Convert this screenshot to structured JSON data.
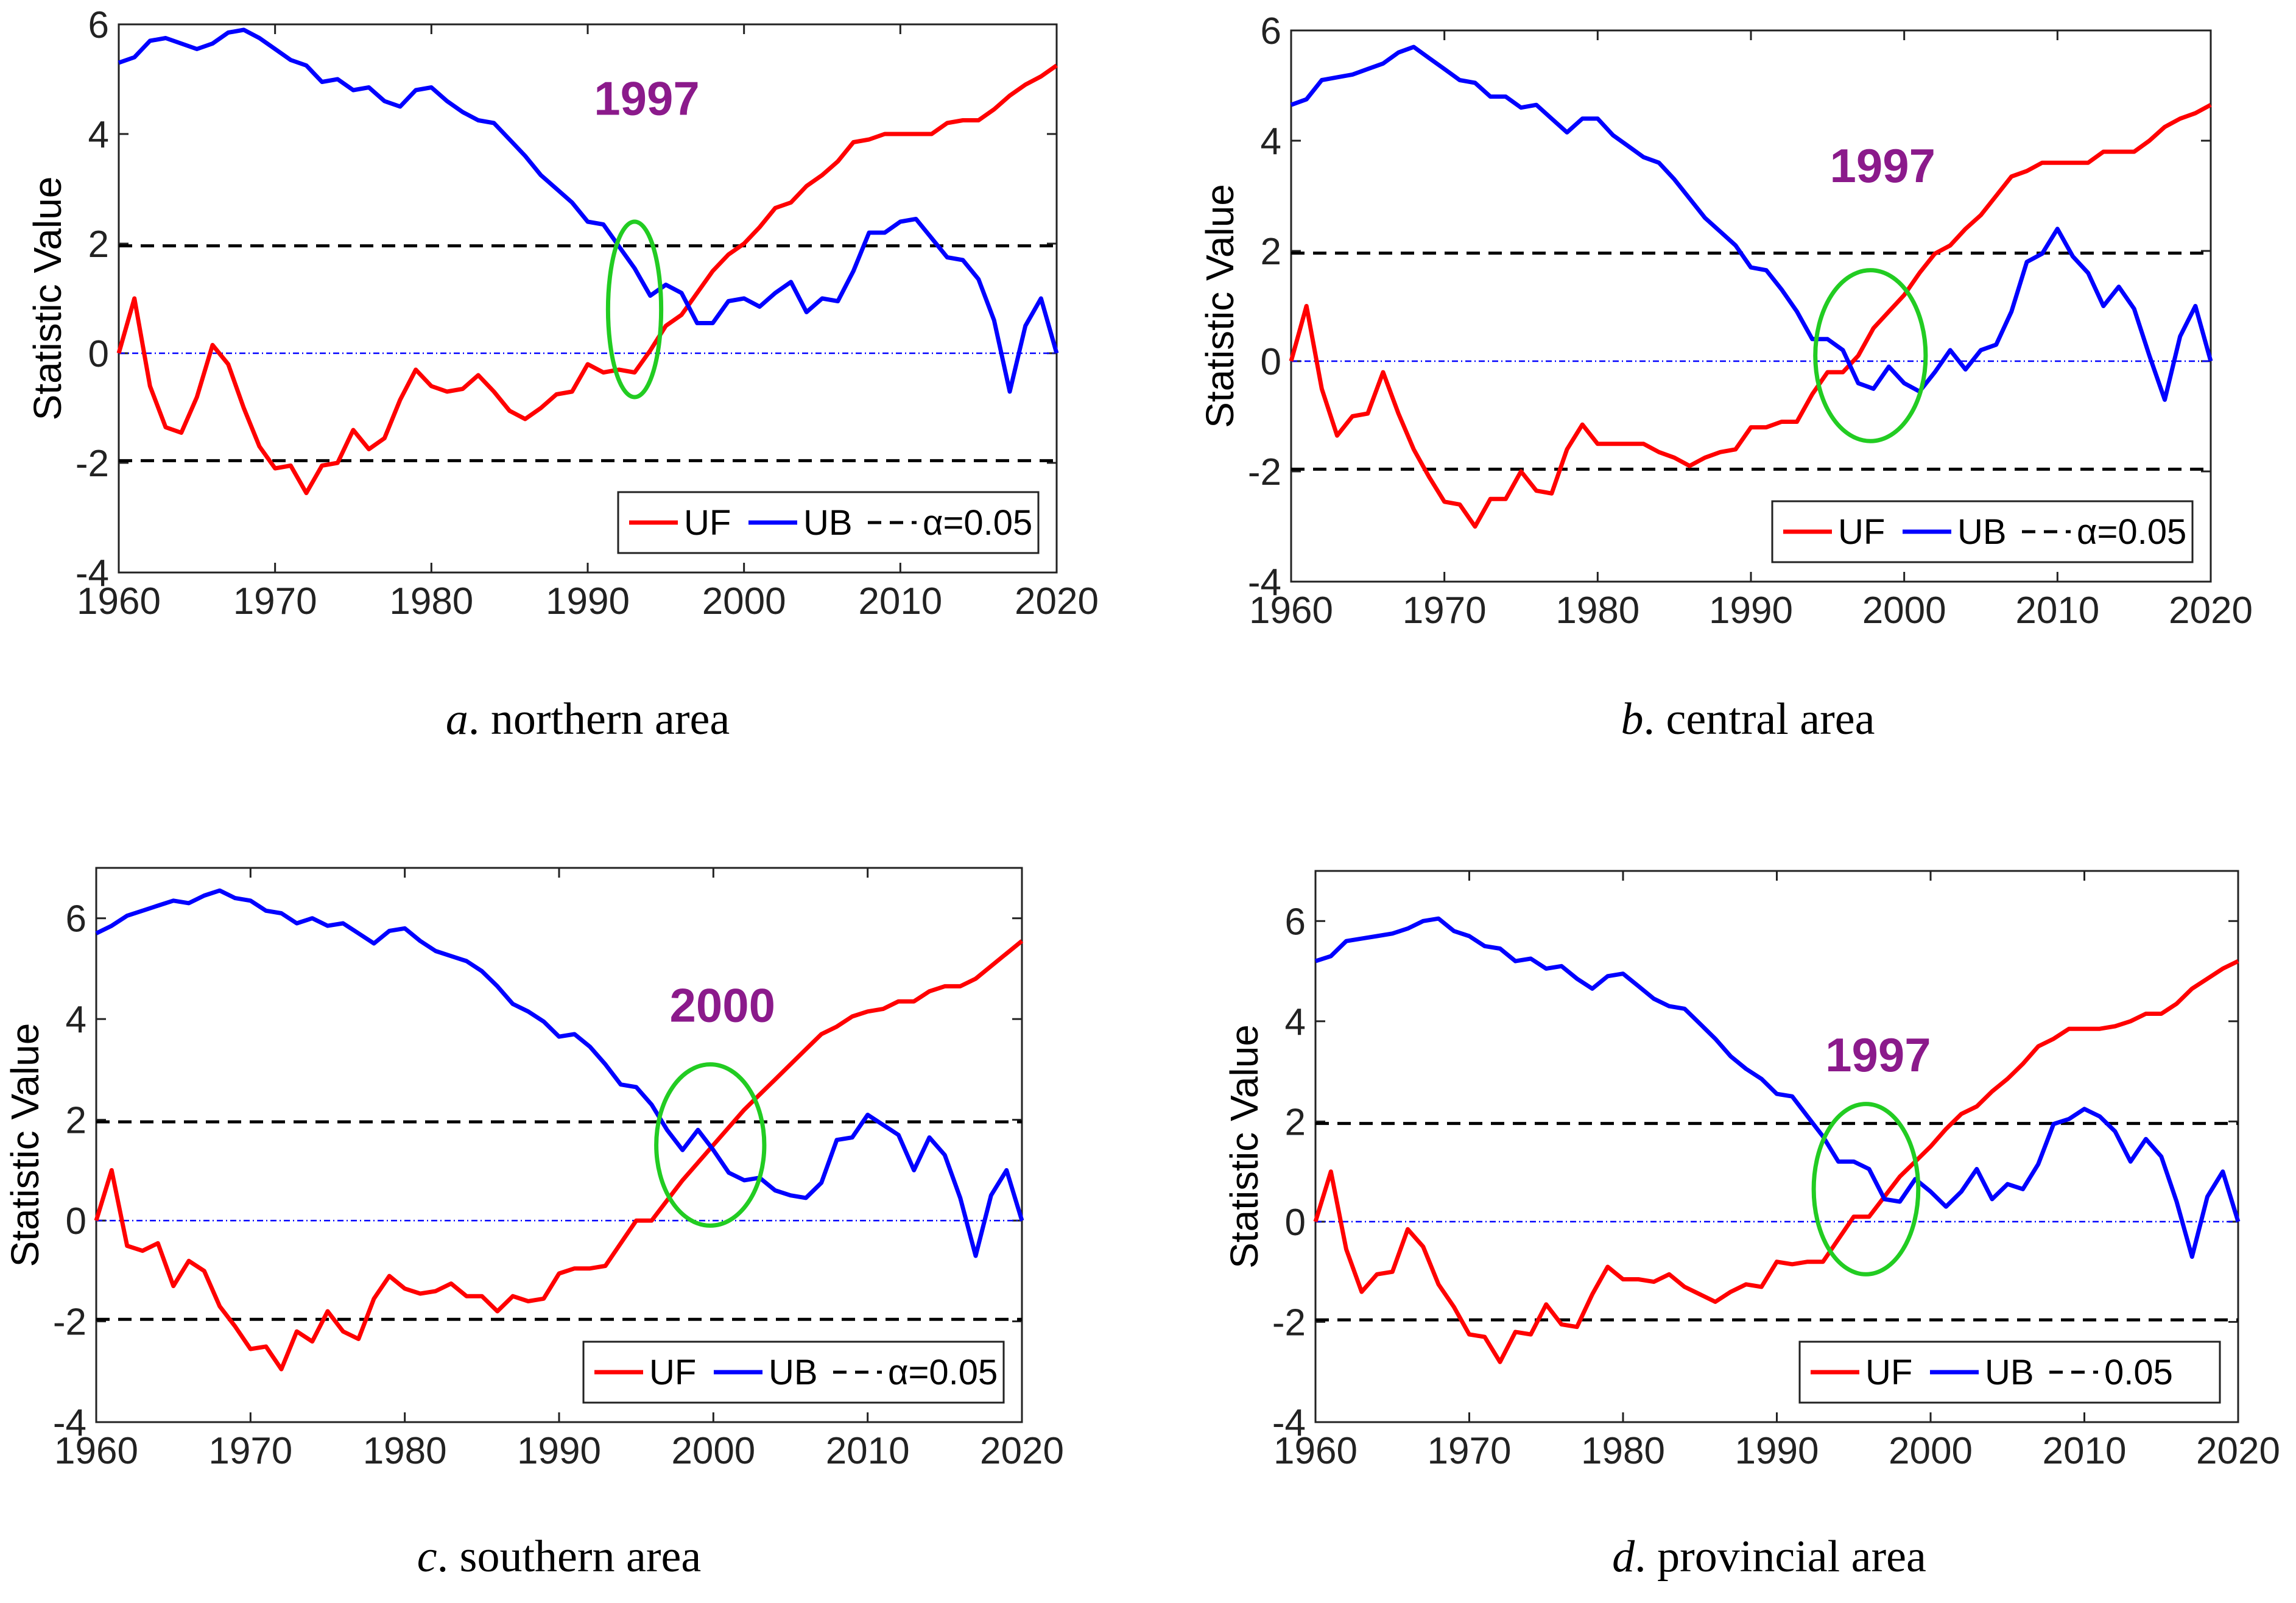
{
  "chart_data": [
    {
      "type": "line",
      "caption_letter": "a",
      "caption_text": ". northern area",
      "ylabel": "Statistic Value",
      "xlabel": "",
      "xlim": [
        1960,
        2020
      ],
      "ylim": [
        -4,
        6
      ],
      "xticks": [
        1960,
        1970,
        1980,
        1990,
        2000,
        2010,
        2020
      ],
      "yticks": [
        -4,
        -2,
        0,
        2,
        4,
        6
      ],
      "annotation": "1997",
      "ellipse_center": [
        1993,
        0.8
      ],
      "ellipse_radii": [
        1.7,
        1.6
      ],
      "reference_lines": [
        {
          "value": 1.96,
          "style": "dashed",
          "color": "#000000"
        },
        {
          "value": -1.96,
          "style": "dashed",
          "color": "#000000"
        },
        {
          "value": 0,
          "style": "dashdot",
          "color": "#0000ff"
        }
      ],
      "legend": {
        "position": "bottom-right",
        "entries": [
          "UF",
          "UB",
          "α=0.05"
        ]
      },
      "series": [
        {
          "name": "UF",
          "color": "#ff0000",
          "x_start": 1960,
          "values": [
            0,
            1.0,
            -0.6,
            -1.35,
            -1.45,
            -0.8,
            0.15,
            -0.2,
            -1.0,
            -1.7,
            -2.1,
            -2.05,
            -2.55,
            -2.05,
            -2.0,
            -1.4,
            -1.75,
            -1.55,
            -0.85,
            -0.3,
            -0.6,
            -0.7,
            -0.65,
            -0.4,
            -0.7,
            -1.05,
            -1.2,
            -1.0,
            -0.75,
            -0.7,
            -0.2,
            -0.35,
            -0.3,
            -0.35,
            0.05,
            0.5,
            0.7,
            1.1,
            1.5,
            1.8,
            2.0,
            2.3,
            2.65,
            2.75,
            3.05,
            3.25,
            3.5,
            3.85,
            3.9,
            4.0,
            4.0,
            4.0,
            4.0,
            4.2,
            4.25,
            4.25,
            4.45,
            4.7,
            4.9,
            5.05,
            5.25
          ]
        },
        {
          "name": "UB",
          "color": "#0000ff",
          "x_start": 1960,
          "values": [
            5.3,
            5.4,
            5.7,
            5.75,
            5.65,
            5.55,
            5.65,
            5.85,
            5.9,
            5.75,
            5.55,
            5.35,
            5.25,
            4.95,
            5.0,
            4.8,
            4.85,
            4.6,
            4.5,
            4.8,
            4.85,
            4.6,
            4.4,
            4.25,
            4.2,
            3.9,
            3.6,
            3.25,
            3.0,
            2.75,
            2.4,
            2.35,
            1.95,
            1.55,
            1.05,
            1.25,
            1.1,
            0.55,
            0.55,
            0.95,
            1.0,
            0.85,
            1.1,
            1.3,
            0.75,
            1.0,
            0.95,
            1.5,
            2.2,
            2.2,
            2.4,
            2.45,
            2.1,
            1.75,
            1.7,
            1.35,
            0.6,
            -0.7,
            0.5,
            1.0,
            0
          ]
        }
      ]
    },
    {
      "type": "line",
      "caption_letter": "b",
      "caption_text": ". central area",
      "ylabel": "Statistic Value",
      "xlabel": "",
      "xlim": [
        1960,
        2020
      ],
      "ylim": [
        -4,
        6
      ],
      "xticks": [
        1960,
        1970,
        1980,
        1990,
        2000,
        2010,
        2020
      ],
      "yticks": [
        -4,
        -2,
        0,
        2,
        4,
        6
      ],
      "annotation": "1997",
      "ellipse_center": [
        1997.8,
        0.1
      ],
      "ellipse_radii": [
        3.6,
        1.55
      ],
      "reference_lines": [
        {
          "value": 1.96,
          "style": "dashed",
          "color": "#000000"
        },
        {
          "value": -1.96,
          "style": "dashed",
          "color": "#000000"
        },
        {
          "value": 0,
          "style": "dashdot",
          "color": "#0000ff"
        }
      ],
      "legend": {
        "position": "bottom-right",
        "entries": [
          "UF",
          "UB",
          "α=0.05"
        ]
      },
      "series": [
        {
          "name": "UF",
          "color": "#ff0000",
          "x_start": 1960,
          "values": [
            0,
            1.0,
            -0.5,
            -1.35,
            -1.0,
            -0.95,
            -0.2,
            -0.95,
            -1.6,
            -2.1,
            -2.55,
            -2.6,
            -3.0,
            -2.5,
            -2.5,
            -2.0,
            -2.35,
            -2.4,
            -1.6,
            -1.15,
            -1.5,
            -1.5,
            -1.5,
            -1.5,
            -1.65,
            -1.75,
            -1.9,
            -1.75,
            -1.65,
            -1.6,
            -1.2,
            -1.2,
            -1.1,
            -1.1,
            -0.6,
            -0.2,
            -0.2,
            0.1,
            0.6,
            0.9,
            1.2,
            1.6,
            1.95,
            2.1,
            2.4,
            2.65,
            3.0,
            3.35,
            3.45,
            3.6,
            3.6,
            3.6,
            3.6,
            3.8,
            3.8,
            3.8,
            4.0,
            4.25,
            4.4,
            4.5,
            4.65
          ]
        },
        {
          "name": "UB",
          "color": "#0000ff",
          "x_start": 1960,
          "values": [
            4.65,
            4.75,
            5.1,
            5.15,
            5.2,
            5.3,
            5.4,
            5.6,
            5.7,
            5.5,
            5.3,
            5.1,
            5.05,
            4.8,
            4.8,
            4.6,
            4.65,
            4.4,
            4.15,
            4.4,
            4.4,
            4.1,
            3.9,
            3.7,
            3.6,
            3.3,
            2.95,
            2.6,
            2.35,
            2.1,
            1.7,
            1.65,
            1.3,
            0.9,
            0.4,
            0.4,
            0.2,
            -0.4,
            -0.5,
            -0.1,
            -0.4,
            -0.55,
            -0.2,
            0.2,
            -0.15,
            0.2,
            0.3,
            0.9,
            1.8,
            1.95,
            2.4,
            1.9,
            1.6,
            1.0,
            1.35,
            0.95,
            0.1,
            -0.7,
            0.45,
            1.0,
            0
          ]
        }
      ]
    },
    {
      "type": "line",
      "caption_letter": "c",
      "caption_text": ". southern area",
      "ylabel": "Statistic Value",
      "xlabel": "",
      "xlim": [
        1960,
        2020
      ],
      "ylim": [
        -4,
        7
      ],
      "xticks": [
        1960,
        1970,
        1980,
        1990,
        2000,
        2010,
        2020
      ],
      "yticks": [
        -4,
        -2,
        0,
        2,
        4,
        6
      ],
      "annotation": "2000",
      "ellipse_center": [
        1999.8,
        1.5
      ],
      "ellipse_radii": [
        3.5,
        1.6
      ],
      "reference_lines": [
        {
          "value": 1.96,
          "style": "dashed",
          "color": "#000000"
        },
        {
          "value": -1.96,
          "style": "dashed",
          "color": "#000000"
        },
        {
          "value": 0,
          "style": "dashdot",
          "color": "#0000ff"
        }
      ],
      "legend": {
        "position": "bottom-right",
        "entries": [
          "UF",
          "UB",
          "α=0.05"
        ]
      },
      "series": [
        {
          "name": "UF",
          "color": "#ff0000",
          "x_start": 1960,
          "values": [
            0,
            1.0,
            -0.5,
            -0.6,
            -0.45,
            -1.3,
            -0.8,
            -1.0,
            -1.7,
            -2.1,
            -2.55,
            -2.5,
            -2.95,
            -2.2,
            -2.4,
            -1.8,
            -2.2,
            -2.35,
            -1.55,
            -1.1,
            -1.35,
            -1.45,
            -1.4,
            -1.25,
            -1.5,
            -1.5,
            -1.8,
            -1.5,
            -1.6,
            -1.55,
            -1.05,
            -0.95,
            -0.95,
            -0.9,
            -0.45,
            0.0,
            0.0,
            0.4,
            0.8,
            1.15,
            1.5,
            1.85,
            2.2,
            2.5,
            2.8,
            3.1,
            3.4,
            3.7,
            3.85,
            4.05,
            4.15,
            4.2,
            4.35,
            4.35,
            4.55,
            4.65,
            4.65,
            4.8,
            5.05,
            5.3,
            5.55
          ]
        },
        {
          "name": "UB",
          "color": "#0000ff",
          "x_start": 1960,
          "values": [
            5.7,
            5.85,
            6.05,
            6.15,
            6.25,
            6.35,
            6.3,
            6.45,
            6.55,
            6.4,
            6.35,
            6.15,
            6.1,
            5.9,
            6.0,
            5.85,
            5.9,
            5.7,
            5.5,
            5.75,
            5.8,
            5.55,
            5.35,
            5.25,
            5.15,
            4.95,
            4.65,
            4.3,
            4.15,
            3.95,
            3.65,
            3.7,
            3.45,
            3.1,
            2.7,
            2.65,
            2.3,
            1.8,
            1.4,
            1.8,
            1.4,
            0.95,
            0.8,
            0.85,
            0.6,
            0.5,
            0.45,
            0.75,
            1.6,
            1.65,
            2.1,
            1.9,
            1.7,
            1.0,
            1.65,
            1.3,
            0.45,
            -0.7,
            0.5,
            1.0,
            0
          ]
        }
      ]
    },
    {
      "type": "line",
      "caption_letter": "d",
      "caption_text": ". provincial area",
      "ylabel": "Statistic Value",
      "xlabel": "",
      "xlim": [
        1960,
        2020
      ],
      "ylim": [
        -4,
        7
      ],
      "xticks": [
        1960,
        1970,
        1980,
        1990,
        2000,
        2010,
        2020
      ],
      "yticks": [
        -4,
        -2,
        0,
        2,
        4,
        6
      ],
      "annotation": "1997",
      "ellipse_center": [
        1995.8,
        0.65
      ],
      "ellipse_radii": [
        3.4,
        1.7
      ],
      "reference_lines": [
        {
          "value": 1.96,
          "style": "dashed",
          "color": "#000000"
        },
        {
          "value": -1.96,
          "style": "dashed",
          "color": "#000000"
        },
        {
          "value": 0,
          "style": "dashdot",
          "color": "#0000ff"
        }
      ],
      "legend": {
        "position": "bottom-right",
        "entries": [
          "UF",
          "UB",
          "0.05"
        ]
      },
      "series": [
        {
          "name": "UF",
          "color": "#ff0000",
          "x_start": 1960,
          "values": [
            0,
            1.0,
            -0.55,
            -1.4,
            -1.05,
            -1.0,
            -0.15,
            -0.5,
            -1.25,
            -1.7,
            -2.25,
            -2.3,
            -2.8,
            -2.2,
            -2.25,
            -1.65,
            -2.05,
            -2.1,
            -1.45,
            -0.9,
            -1.15,
            -1.15,
            -1.2,
            -1.05,
            -1.3,
            -1.45,
            -1.6,
            -1.4,
            -1.25,
            -1.3,
            -0.8,
            -0.85,
            -0.8,
            -0.8,
            -0.35,
            0.1,
            0.1,
            0.5,
            0.9,
            1.2,
            1.5,
            1.85,
            2.15,
            2.3,
            2.6,
            2.85,
            3.15,
            3.5,
            3.65,
            3.85,
            3.85,
            3.85,
            3.9,
            4.0,
            4.15,
            4.15,
            4.35,
            4.65,
            4.85,
            5.05,
            5.2
          ]
        },
        {
          "name": "UB",
          "color": "#0000ff",
          "x_start": 1960,
          "values": [
            5.2,
            5.3,
            5.6,
            5.65,
            5.7,
            5.75,
            5.85,
            6.0,
            6.05,
            5.8,
            5.7,
            5.5,
            5.45,
            5.2,
            5.25,
            5.05,
            5.1,
            4.85,
            4.65,
            4.9,
            4.95,
            4.7,
            4.45,
            4.3,
            4.25,
            3.95,
            3.65,
            3.3,
            3.05,
            2.85,
            2.55,
            2.5,
            2.1,
            1.7,
            1.2,
            1.2,
            1.05,
            0.45,
            0.4,
            0.85,
            0.6,
            0.3,
            0.6,
            1.05,
            0.45,
            0.75,
            0.65,
            1.15,
            1.95,
            2.05,
            2.25,
            2.1,
            1.8,
            1.2,
            1.65,
            1.3,
            0.4,
            -0.7,
            0.5,
            1.0,
            0
          ]
        }
      ]
    }
  ]
}
